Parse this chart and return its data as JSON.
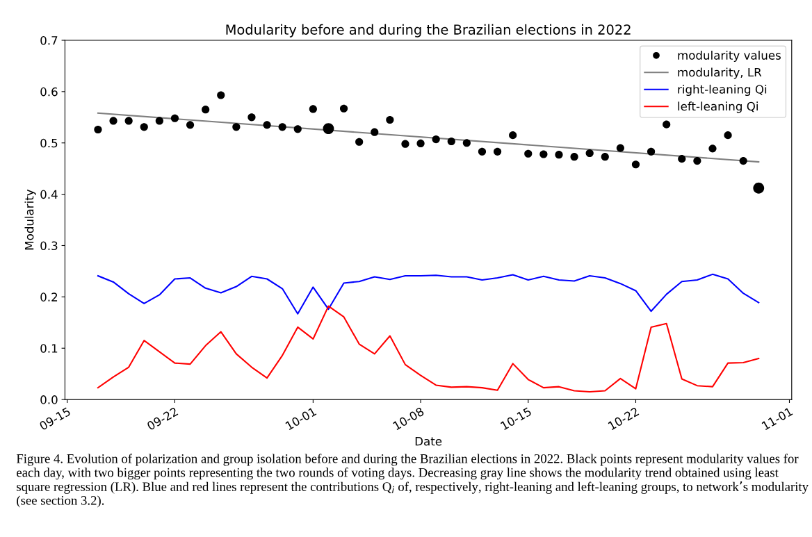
{
  "chart_data": {
    "type": "line",
    "title": "Modularity before and during the Brazilian elections in 2022",
    "xlabel": "Date",
    "ylabel": "Modularity",
    "x": [
      "2022-09-17",
      "2022-09-18",
      "2022-09-19",
      "2022-09-20",
      "2022-09-21",
      "2022-09-22",
      "2022-09-23",
      "2022-09-24",
      "2022-09-25",
      "2022-09-26",
      "2022-09-27",
      "2022-09-28",
      "2022-09-29",
      "2022-09-30",
      "2022-10-01",
      "2022-10-02",
      "2022-10-03",
      "2022-10-04",
      "2022-10-05",
      "2022-10-06",
      "2022-10-07",
      "2022-10-08",
      "2022-10-09",
      "2022-10-10",
      "2022-10-11",
      "2022-10-12",
      "2022-10-13",
      "2022-10-14",
      "2022-10-15",
      "2022-10-16",
      "2022-10-17",
      "2022-10-18",
      "2022-10-19",
      "2022-10-20",
      "2022-10-21",
      "2022-10-22",
      "2022-10-23",
      "2022-10-24",
      "2022-10-25",
      "2022-10-26",
      "2022-10-27",
      "2022-10-28",
      "2022-10-29",
      "2022-10-30"
    ],
    "series": [
      {
        "name": "modularity values",
        "type": "bubble",
        "color": "#000000",
        "marker": "circle",
        "values": [
          0.526,
          0.543,
          0.543,
          0.531,
          0.543,
          0.548,
          0.535,
          0.565,
          0.593,
          0.531,
          0.55,
          0.535,
          0.531,
          0.527,
          0.566,
          0.528,
          0.567,
          0.502,
          0.521,
          0.545,
          0.498,
          0.499,
          0.507,
          0.503,
          0.5,
          0.483,
          0.483,
          0.515,
          0.479,
          0.478,
          0.477,
          0.473,
          0.48,
          0.473,
          0.49,
          0.458,
          0.483,
          0.536,
          0.469,
          0.465,
          0.489,
          0.515,
          0.465,
          0.412
        ],
        "sizes": [
          0.5,
          0.5,
          0.5,
          0.5,
          0.5,
          0.5,
          0.5,
          0.5,
          0.5,
          0.5,
          0.5,
          0.5,
          0.5,
          0.5,
          0.5,
          1,
          0.5,
          0.5,
          0.5,
          0.5,
          0.5,
          0.5,
          0.5,
          0.5,
          0.5,
          0.5,
          0.5,
          0.5,
          0.5,
          0.5,
          0.5,
          0.5,
          0.5,
          0.5,
          0.5,
          0.5,
          0.5,
          0.5,
          0.5,
          0.5,
          0.5,
          0.5,
          0.5,
          1
        ]
      },
      {
        "name": "modularity, LR",
        "color": "#808080",
        "x": [
          "2022-09-17",
          "2022-10-30"
        ],
        "values": [
          0.558,
          0.463
        ]
      },
      {
        "name": "right-leaning Qi",
        "color": "#0000ff",
        "values": [
          0.241,
          0.229,
          0.206,
          0.187,
          0.204,
          0.235,
          0.237,
          0.217,
          0.208,
          0.22,
          0.24,
          0.235,
          0.216,
          0.167,
          0.219,
          0.176,
          0.227,
          0.23,
          0.239,
          0.234,
          0.241,
          0.241,
          0.242,
          0.239,
          0.239,
          0.233,
          0.237,
          0.243,
          0.233,
          0.24,
          0.233,
          0.231,
          0.241,
          0.237,
          0.226,
          0.212,
          0.172,
          0.205,
          0.23,
          0.233,
          0.244,
          0.235,
          0.207,
          0.189
        ]
      },
      {
        "name": "left-leaning Qi",
        "color": "#ff0000",
        "values": [
          0.023,
          0.044,
          0.063,
          0.115,
          0.093,
          0.071,
          0.069,
          0.105,
          0.132,
          0.089,
          0.063,
          0.042,
          0.086,
          0.141,
          0.118,
          0.182,
          0.161,
          0.108,
          0.089,
          0.124,
          0.068,
          0.047,
          0.028,
          0.024,
          0.025,
          0.023,
          0.018,
          0.07,
          0.039,
          0.023,
          0.025,
          0.017,
          0.015,
          0.017,
          0.041,
          0.021,
          0.141,
          0.148,
          0.04,
          0.027,
          0.025,
          0.071,
          0.072,
          0.08
        ]
      }
    ],
    "xlim": [
      "2022-09-14T20:24",
      "2022-11-01T03:36"
    ],
    "xticks": [
      {
        "value": "2022-09-15",
        "label": "09-15"
      },
      {
        "value": "2022-09-22",
        "label": "09-22"
      },
      {
        "value": "2022-10-01",
        "label": "10-01"
      },
      {
        "value": "2022-10-08",
        "label": "10-08"
      },
      {
        "value": "2022-10-15",
        "label": "10-15"
      },
      {
        "value": "2022-10-22",
        "label": "10-22"
      },
      {
        "value": "2022-11-01",
        "label": "11-01"
      }
    ],
    "ylim": [
      0,
      0.7
    ],
    "yticks": [
      {
        "value": 0,
        "label": "0.0"
      },
      0.1,
      0.2,
      0.3,
      0.4,
      0.5,
      0.6,
      0.7
    ],
    "legend": "top right",
    "grid": false,
    "annotations": [
      "Figure 4. Evolution of polarization and group isolation before and during the Brazilian elections in 2022. Black points represent modularity values for each day, with two bigger points representing the two rounds of voting days. Decreasing gray line shows the modularity trend obtained using least square regression (LR). Blue and red lines represent the contributions Q$_{i}$ of, respectively, right-leaning and left-leaning groups, to network’s modularity (see section 3.2)."
    ]
  }
}
